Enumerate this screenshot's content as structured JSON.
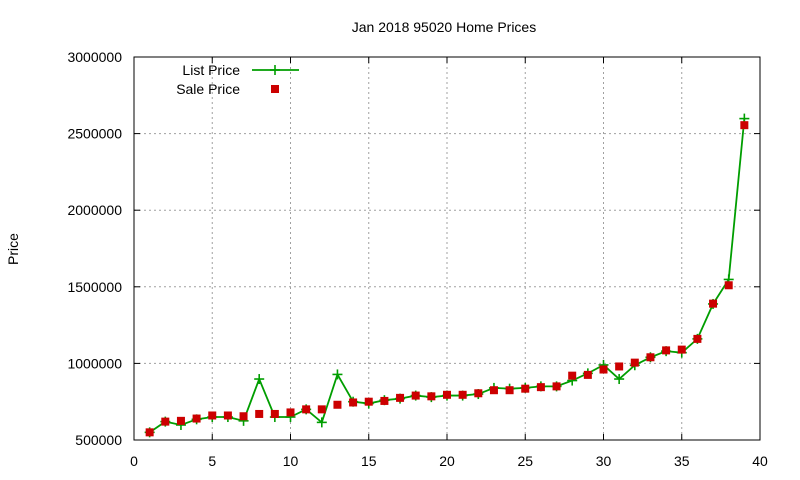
{
  "chart_data": {
    "type": "line",
    "title": "Jan 2018 95020 Home Prices",
    "ylabel": "Price",
    "xlabel": "",
    "xlim": [
      0,
      40
    ],
    "ylim": [
      500000,
      3000000
    ],
    "xticks": [
      0,
      5,
      10,
      15,
      20,
      25,
      30,
      35,
      40
    ],
    "yticks": [
      500000,
      1000000,
      1500000,
      2000000,
      2500000,
      3000000
    ],
    "grid": true,
    "legend_position": "top-left",
    "x": [
      1,
      2,
      3,
      4,
      5,
      6,
      7,
      8,
      9,
      10,
      11,
      12,
      13,
      14,
      15,
      16,
      17,
      18,
      19,
      20,
      21,
      22,
      23,
      24,
      25,
      26,
      27,
      28,
      29,
      30,
      31,
      32,
      33,
      34,
      35,
      36,
      37,
      38,
      39
    ],
    "series": [
      {
        "name": "List Price",
        "style": "linespoints",
        "marker": "plus",
        "color": "#009e00",
        "values": [
          550000,
          620000,
          598000,
          635000,
          650000,
          650000,
          625000,
          898000,
          650000,
          650000,
          700000,
          615000,
          928000,
          750000,
          738000,
          760000,
          770000,
          790000,
          780000,
          790000,
          790000,
          800000,
          840000,
          835000,
          840000,
          850000,
          850000,
          888000,
          935000,
          990000,
          898000,
          988000,
          1040000,
          1080000,
          1070000,
          1160000,
          1388000,
          1548000,
          2598000
        ]
      },
      {
        "name": "Sale Price",
        "style": "points",
        "marker": "square",
        "color": "#cc0000",
        "values": [
          550000,
          620000,
          625000,
          640000,
          660000,
          660000,
          655000,
          670000,
          670000,
          680000,
          700000,
          700000,
          730000,
          745000,
          750000,
          755000,
          775000,
          790000,
          785000,
          795000,
          795000,
          805000,
          825000,
          825000,
          835000,
          845000,
          850000,
          920000,
          925000,
          960000,
          980000,
          1005000,
          1040000,
          1085000,
          1090000,
          1160000,
          1390000,
          1510000,
          2555000
        ]
      }
    ]
  }
}
